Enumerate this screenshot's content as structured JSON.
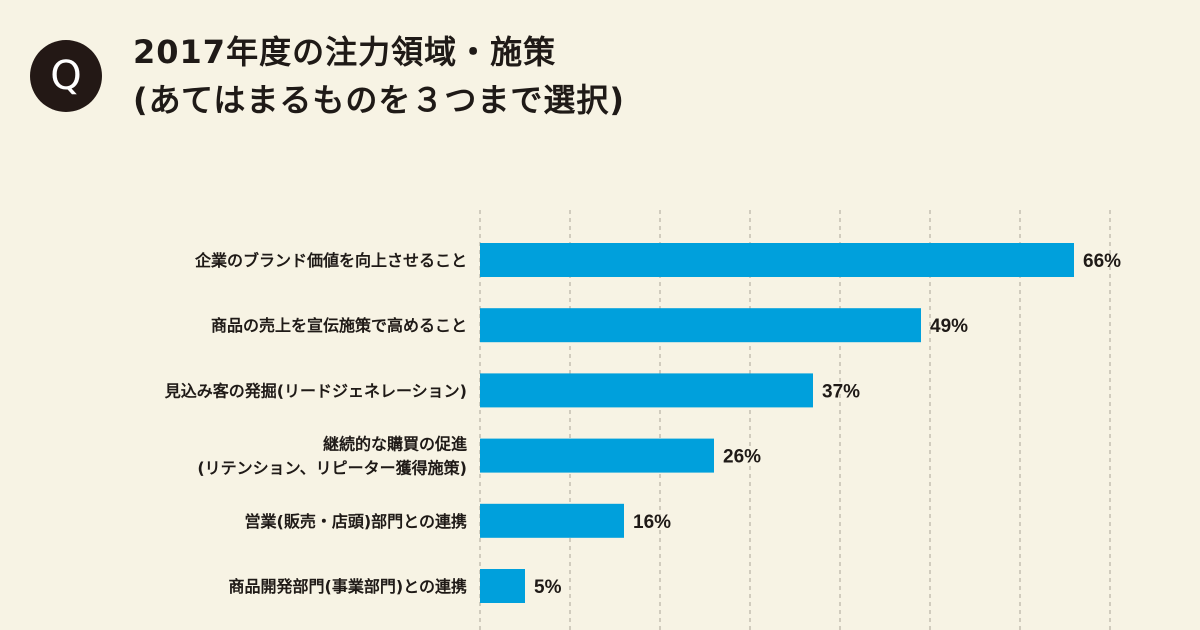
{
  "badge": {
    "letter": "Q"
  },
  "chart_data": {
    "type": "bar",
    "orientation": "horizontal",
    "title_lines": [
      "2017年度の注力領域・施策",
      "(あてはまるものを３つまで選択)"
    ],
    "categories": [
      [
        "企業のブランド価値を向上させること"
      ],
      [
        "商品の売上を宣伝施策で高めること"
      ],
      [
        "見込み客の発掘(リードジェネレーション)"
      ],
      [
        "継続的な購買の促進",
        "(リテンション、リピーター獲得施策)"
      ],
      [
        "営業(販売・店頭)部門との連携"
      ],
      [
        "商品開発部門(事業部門)との連携"
      ]
    ],
    "values": [
      66,
      49,
      37,
      26,
      16,
      5
    ],
    "value_labels": [
      "66%",
      "49%",
      "37%",
      "26%",
      "16%",
      "5%"
    ],
    "unit": "%",
    "xlim": [
      0,
      70
    ],
    "grid": "vertical dashed every 10%",
    "bar_color": "#00a0dc",
    "grid_color": "#b8b3a6"
  }
}
